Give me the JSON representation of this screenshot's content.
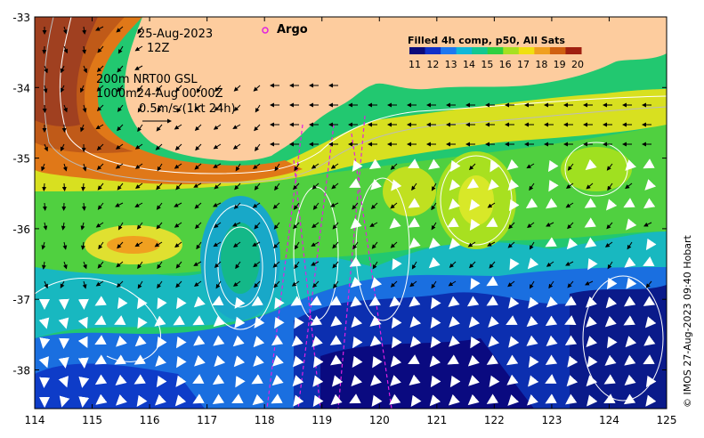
{
  "map": {
    "date": "25-Aug-2023",
    "time": "12Z",
    "contour_info": "200m  NRT00 GSL",
    "contour_info2": "1000m24-Aug 00:00Z",
    "velocity_scale": "0.5m/s (1kt 24h)",
    "argo_label": "Argo",
    "credit": "© IMOS 27-Aug-2023 09:40 Hobart",
    "legend": {
      "title": "Filled 4h comp, p50, All Sats",
      "labels": [
        "11",
        "12",
        "13",
        "14",
        "15",
        "16",
        "17",
        "18",
        "19",
        "20"
      ],
      "colors": [
        "#0a0a7a",
        "#1030c8",
        "#1e78f0",
        "#10b8d8",
        "#14c890",
        "#30d040",
        "#a8e020",
        "#f0e010",
        "#f0a020",
        "#d06010",
        "#a02010"
      ]
    },
    "axes": {
      "x_ticks": [
        "114",
        "115",
        "116",
        "117",
        "118",
        "119",
        "120",
        "121",
        "122",
        "123",
        "124",
        "125"
      ],
      "y_ticks": [
        "-33",
        "-34",
        "-35",
        "-36",
        "-37",
        "-38"
      ]
    }
  }
}
